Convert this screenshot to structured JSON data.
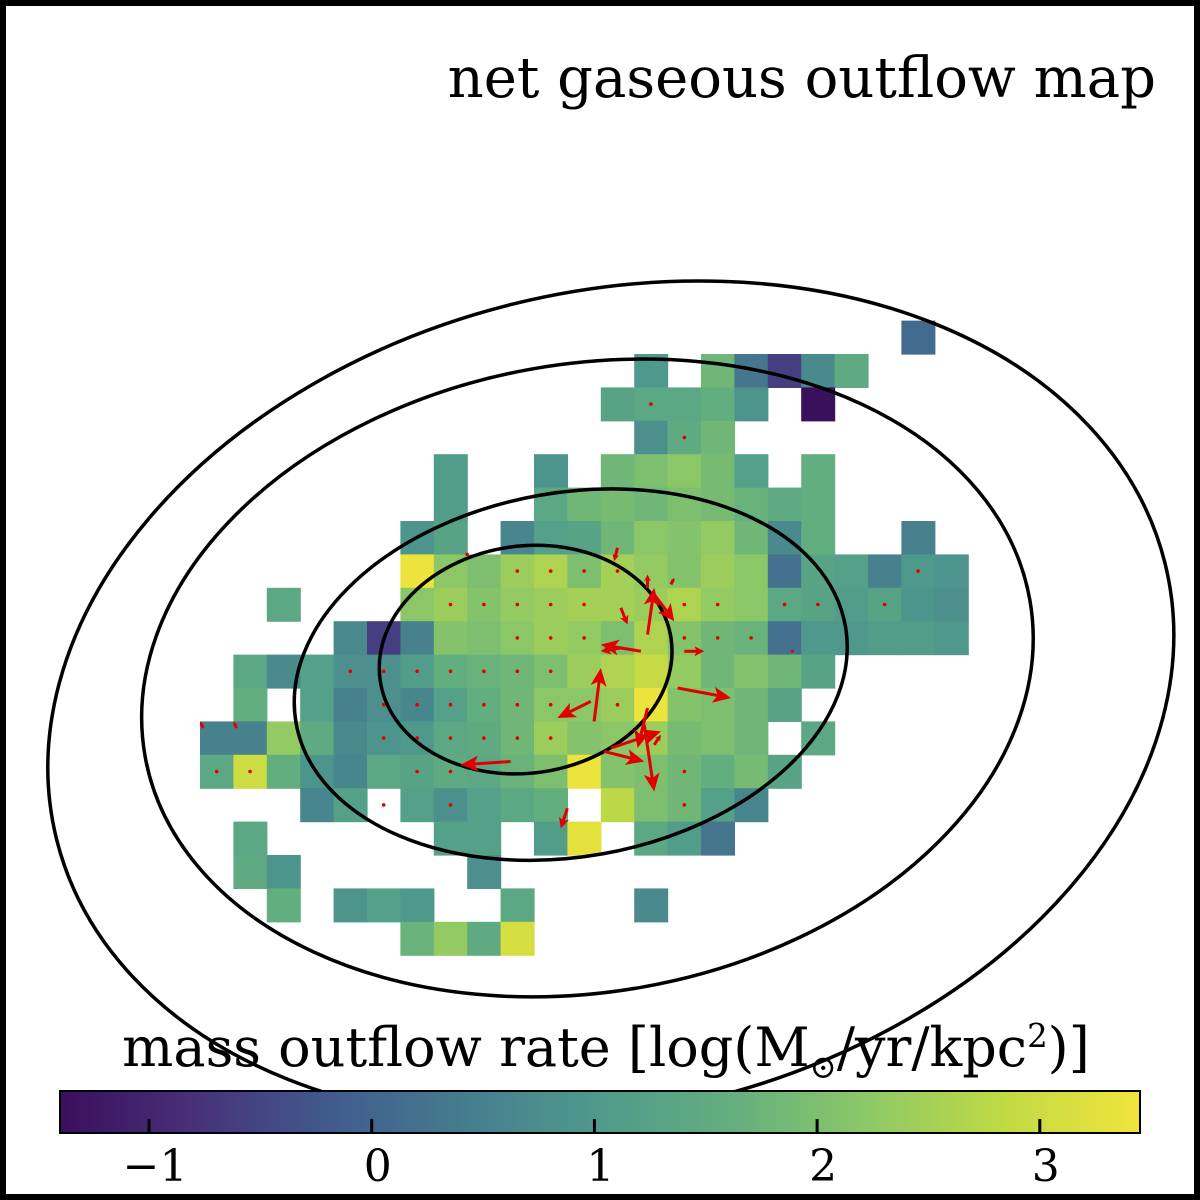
{
  "chart_data": {
    "type": "heatmap",
    "title": "net gaseous outflow map",
    "colorbar": {
      "label_text": "mass outflow rate [log(M",
      "label_sub": "⊙",
      "label_mid": "/yr/kpc",
      "label_sup": "2",
      "label_end": ")]",
      "colormap": "viridis",
      "vmin": -1.4,
      "vmax": 3.45,
      "ticks": [
        -1,
        0,
        1,
        2,
        3
      ],
      "tick_labels": [
        "−1",
        "0",
        "1",
        "2",
        "3"
      ],
      "orientation": "horizontal",
      "placement": "bottom"
    },
    "grid": {
      "origin": [
        0,
        0
      ],
      "spacing": 1
    },
    "cells": [
      [
        21,
        9,
        0.1
      ],
      [
        13,
        10,
        1.0
      ],
      [
        15,
        10,
        1.8
      ],
      [
        16,
        10,
        0.3
      ],
      [
        17,
        10,
        -0.6
      ],
      [
        18,
        10,
        0.7
      ],
      [
        19,
        10,
        1.5
      ],
      [
        12,
        11,
        1.3
      ],
      [
        13,
        11,
        1.4
      ],
      [
        14,
        11,
        1.4
      ],
      [
        15,
        11,
        1.6
      ],
      [
        16,
        11,
        0.9
      ],
      [
        18,
        11,
        -1.4
      ],
      [
        13,
        12,
        0.8
      ],
      [
        14,
        12,
        1.5
      ],
      [
        15,
        12,
        1.8
      ],
      [
        7,
        13,
        1.1
      ],
      [
        10,
        13,
        0.9
      ],
      [
        12,
        13,
        1.8
      ],
      [
        13,
        13,
        2.0
      ],
      [
        14,
        13,
        2.2
      ],
      [
        15,
        13,
        1.9
      ],
      [
        16,
        13,
        1.2
      ],
      [
        18,
        13,
        1.6
      ],
      [
        7,
        14,
        1.1
      ],
      [
        10,
        14,
        1.4
      ],
      [
        11,
        14,
        1.8
      ],
      [
        12,
        14,
        1.9
      ],
      [
        13,
        14,
        1.8
      ],
      [
        14,
        14,
        2.0
      ],
      [
        15,
        14,
        1.9
      ],
      [
        16,
        14,
        1.7
      ],
      [
        17,
        14,
        1.5
      ],
      [
        18,
        14,
        1.6
      ],
      [
        6,
        15,
        0.9
      ],
      [
        7,
        15,
        1.3
      ],
      [
        9,
        15,
        0.6
      ],
      [
        10,
        15,
        1.2
      ],
      [
        11,
        15,
        1.3
      ],
      [
        12,
        15,
        1.8
      ],
      [
        13,
        15,
        2.2
      ],
      [
        14,
        15,
        2.1
      ],
      [
        15,
        15,
        2.3
      ],
      [
        16,
        15,
        1.8
      ],
      [
        17,
        15,
        0.7
      ],
      [
        18,
        15,
        1.6
      ],
      [
        21,
        15,
        0.5
      ],
      [
        6,
        16,
        3.4
      ],
      [
        7,
        16,
        2.2
      ],
      [
        8,
        16,
        2.0
      ],
      [
        9,
        16,
        2.4
      ],
      [
        10,
        16,
        2.6
      ],
      [
        11,
        16,
        2.0
      ],
      [
        12,
        16,
        2.5
      ],
      [
        13,
        16,
        2.3
      ],
      [
        14,
        16,
        2.1
      ],
      [
        15,
        16,
        2.4
      ],
      [
        16,
        16,
        2.2
      ],
      [
        17,
        16,
        0.2
      ],
      [
        18,
        16,
        1.3
      ],
      [
        19,
        16,
        1.2
      ],
      [
        20,
        16,
        0.5
      ],
      [
        21,
        16,
        1.0
      ],
      [
        22,
        16,
        0.9
      ],
      [
        2,
        17,
        1.4
      ],
      [
        6,
        17,
        2.2
      ],
      [
        7,
        17,
        2.4
      ],
      [
        8,
        17,
        2.1
      ],
      [
        9,
        17,
        2.3
      ],
      [
        10,
        17,
        2.4
      ],
      [
        11,
        17,
        2.5
      ],
      [
        12,
        17,
        2.5
      ],
      [
        13,
        17,
        2.4
      ],
      [
        14,
        17,
        2.6
      ],
      [
        15,
        17,
        2.3
      ],
      [
        16,
        17,
        2.2
      ],
      [
        17,
        17,
        1.4
      ],
      [
        18,
        17,
        1.3
      ],
      [
        19,
        17,
        1.1
      ],
      [
        20,
        17,
        1.3
      ],
      [
        21,
        17,
        0.9
      ],
      [
        22,
        17,
        0.8
      ],
      [
        4,
        18,
        0.7
      ],
      [
        5,
        18,
        -0.6
      ],
      [
        6,
        18,
        0.5
      ],
      [
        7,
        18,
        2.1
      ],
      [
        8,
        18,
        2.0
      ],
      [
        9,
        18,
        2.2
      ],
      [
        10,
        18,
        2.4
      ],
      [
        11,
        18,
        2.3
      ],
      [
        12,
        18,
        2.0
      ],
      [
        13,
        18,
        2.6
      ],
      [
        14,
        18,
        2.1
      ],
      [
        15,
        18,
        1.8
      ],
      [
        16,
        18,
        1.7
      ],
      [
        17,
        18,
        0.2
      ],
      [
        18,
        18,
        1.0
      ],
      [
        19,
        18,
        1.0
      ],
      [
        20,
        18,
        1.1
      ],
      [
        21,
        18,
        1.1
      ],
      [
        22,
        18,
        1.0
      ],
      [
        1,
        19,
        1.4
      ],
      [
        2,
        19,
        0.7
      ],
      [
        3,
        19,
        1.2
      ],
      [
        4,
        19,
        0.8
      ],
      [
        5,
        19,
        0.8
      ],
      [
        6,
        19,
        1.1
      ],
      [
        7,
        19,
        1.6
      ],
      [
        8,
        19,
        1.7
      ],
      [
        9,
        19,
        1.8
      ],
      [
        10,
        19,
        2.0
      ],
      [
        11,
        19,
        2.4
      ],
      [
        12,
        19,
        2.6
      ],
      [
        13,
        19,
        2.9
      ],
      [
        14,
        19,
        2.3
      ],
      [
        15,
        19,
        1.8
      ],
      [
        16,
        19,
        2.1
      ],
      [
        17,
        19,
        1.8
      ],
      [
        18,
        19,
        1.3
      ],
      [
        1,
        20,
        1.6
      ],
      [
        3,
        20,
        1.2
      ],
      [
        4,
        20,
        0.5
      ],
      [
        5,
        20,
        0.8
      ],
      [
        6,
        20,
        0.6
      ],
      [
        7,
        20,
        1.2
      ],
      [
        8,
        20,
        1.6
      ],
      [
        9,
        20,
        1.8
      ],
      [
        10,
        20,
        2.2
      ],
      [
        11,
        20,
        2.2
      ],
      [
        12,
        20,
        2.4
      ],
      [
        13,
        20,
        3.4
      ],
      [
        14,
        20,
        2.1
      ],
      [
        15,
        20,
        2.0
      ],
      [
        16,
        20,
        1.8
      ],
      [
        17,
        20,
        1.3
      ],
      [
        0,
        21,
        0.5
      ],
      [
        1,
        21,
        0.5
      ],
      [
        2,
        21,
        2.3
      ],
      [
        3,
        21,
        1.5
      ],
      [
        4,
        21,
        0.7
      ],
      [
        5,
        21,
        0.9
      ],
      [
        6,
        21,
        1.0
      ],
      [
        7,
        21,
        1.4
      ],
      [
        8,
        21,
        1.5
      ],
      [
        9,
        21,
        1.8
      ],
      [
        10,
        21,
        2.4
      ],
      [
        11,
        21,
        2.1
      ],
      [
        12,
        21,
        2.2
      ],
      [
        13,
        21,
        2.4
      ],
      [
        14,
        21,
        1.9
      ],
      [
        15,
        21,
        2.0
      ],
      [
        16,
        21,
        1.8
      ],
      [
        18,
        21,
        1.4
      ],
      [
        0,
        22,
        1.4
      ],
      [
        1,
        22,
        3.0
      ],
      [
        2,
        22,
        1.6
      ],
      [
        3,
        22,
        0.9
      ],
      [
        4,
        22,
        0.6
      ],
      [
        5,
        22,
        1.4
      ],
      [
        6,
        22,
        1.3
      ],
      [
        7,
        22,
        1.5
      ],
      [
        8,
        22,
        1.4
      ],
      [
        9,
        22,
        1.7
      ],
      [
        10,
        22,
        2.0
      ],
      [
        11,
        22,
        3.4
      ],
      [
        12,
        22,
        2.1
      ],
      [
        13,
        22,
        2.0
      ],
      [
        14,
        22,
        1.8
      ],
      [
        15,
        22,
        1.6
      ],
      [
        16,
        22,
        1.9
      ],
      [
        17,
        22,
        1.3
      ],
      [
        3,
        23,
        0.6
      ],
      [
        4,
        23,
        1.2
      ],
      [
        6,
        23,
        1.2
      ],
      [
        7,
        23,
        0.8
      ],
      [
        8,
        23,
        1.2
      ],
      [
        9,
        23,
        1.4
      ],
      [
        10,
        23,
        1.6
      ],
      [
        12,
        23,
        2.8
      ],
      [
        13,
        23,
        2.0
      ],
      [
        14,
        23,
        1.8
      ],
      [
        15,
        23,
        1.2
      ],
      [
        16,
        23,
        0.6
      ],
      [
        1,
        24,
        1.4
      ],
      [
        7,
        24,
        1.2
      ],
      [
        8,
        24,
        1.2
      ],
      [
        10,
        24,
        1.1
      ],
      [
        11,
        24,
        3.3
      ],
      [
        13,
        24,
        1.4
      ],
      [
        14,
        24,
        1.1
      ],
      [
        15,
        24,
        0.3
      ],
      [
        1,
        25,
        1.5
      ],
      [
        2,
        25,
        0.9
      ],
      [
        8,
        25,
        0.8
      ],
      [
        2,
        26,
        1.6
      ],
      [
        4,
        26,
        0.9
      ],
      [
        5,
        26,
        1.2
      ],
      [
        6,
        26,
        1.0
      ],
      [
        9,
        26,
        1.4
      ],
      [
        13,
        26,
        0.7
      ],
      [
        6,
        27,
        1.7
      ],
      [
        7,
        27,
        2.3
      ],
      [
        8,
        27,
        1.5
      ],
      [
        9,
        27,
        3.1
      ]
    ],
    "arrows": [
      [
        13.2,
        18.9,
        -1.2,
        -0.2
      ],
      [
        13.4,
        18.4,
        0.2,
        -1.4
      ],
      [
        12.6,
        18.8,
        -0.6,
        0.1
      ],
      [
        11.8,
        21.0,
        0.2,
        -1.6
      ],
      [
        11.7,
        20.4,
        -1.0,
        0.5
      ],
      [
        13.4,
        20.6,
        -0.3,
        1.2
      ],
      [
        14.5,
        18.9,
        0.6,
        0.0
      ],
      [
        14.3,
        20.0,
        1.6,
        0.3
      ],
      [
        12.3,
        21.8,
        1.5,
        -0.5
      ],
      [
        12.1,
        21.9,
        1.2,
        0.3
      ],
      [
        13.3,
        21.1,
        0.3,
        2.0
      ],
      [
        13.4,
        17.0,
        0.0,
        -0.4
      ],
      [
        12.6,
        17.6,
        0.2,
        0.5
      ],
      [
        13.6,
        17.2,
        0.6,
        0.8
      ],
      [
        9.3,
        22.2,
        -1.5,
        0.1
      ],
      [
        11.0,
        23.6,
        -0.2,
        0.6
      ],
      [
        13.6,
        21.7,
        0.2,
        -0.3
      ],
      [
        14.1,
        16.9,
        0.1,
        -0.2
      ],
      [
        0.1,
        21.2,
        -0.1,
        -0.2
      ],
      [
        1.1,
        21.2,
        -0.1,
        -0.2
      ],
      [
        12.5,
        15.8,
        -0.1,
        0.4
      ],
      [
        17.7,
        18.9,
        0.1,
        0.0
      ]
    ],
    "dots": [
      [
        13.5,
        11.5
      ],
      [
        14.5,
        12.5
      ],
      [
        8.0,
        16.0
      ],
      [
        9.5,
        16.5
      ],
      [
        10.5,
        16.5
      ],
      [
        11.5,
        16.5
      ],
      [
        12.5,
        16.5
      ],
      [
        7.5,
        17.5
      ],
      [
        8.5,
        17.5
      ],
      [
        9.5,
        17.5
      ],
      [
        10.5,
        17.5
      ],
      [
        11.5,
        17.5
      ],
      [
        14.5,
        17.5
      ],
      [
        15.5,
        17.5
      ],
      [
        17.5,
        17.5
      ],
      [
        18.5,
        17.5
      ],
      [
        20.5,
        17.5
      ],
      [
        9.5,
        18.5
      ],
      [
        10.5,
        18.5
      ],
      [
        11.5,
        18.5
      ],
      [
        14.5,
        18.5
      ],
      [
        15.5,
        18.5
      ],
      [
        16.5,
        18.5
      ],
      [
        4.5,
        19.5
      ],
      [
        5.5,
        19.5
      ],
      [
        6.5,
        19.5
      ],
      [
        7.5,
        19.5
      ],
      [
        8.5,
        19.5
      ],
      [
        9.5,
        19.5
      ],
      [
        10.5,
        19.5
      ],
      [
        5.5,
        20.5
      ],
      [
        6.5,
        20.5
      ],
      [
        7.5,
        20.5
      ],
      [
        8.5,
        20.5
      ],
      [
        9.5,
        20.5
      ],
      [
        10.5,
        20.5
      ],
      [
        12.5,
        20.5
      ],
      [
        5.5,
        21.5
      ],
      [
        6.5,
        21.5
      ],
      [
        7.5,
        21.5
      ],
      [
        8.5,
        21.5
      ],
      [
        9.5,
        21.5
      ],
      [
        10.5,
        21.5
      ],
      [
        0.5,
        22.5
      ],
      [
        1.5,
        22.5
      ],
      [
        6.5,
        22.5
      ],
      [
        7.5,
        22.5
      ],
      [
        14.5,
        22.5
      ],
      [
        5.5,
        23.5
      ],
      [
        7.5,
        23.5
      ],
      [
        14.5,
        23.5
      ],
      [
        21.5,
        16.5
      ]
    ],
    "ellipses": [
      {
        "cx": 11.1,
        "cy": 19.6,
        "rx": 8.35,
        "ry": 5.45,
        "angle_deg": -10
      },
      {
        "cx": 11.6,
        "cy": 19.7,
        "rx": 13.45,
        "ry": 9.4,
        "angle_deg": -10
      },
      {
        "cx": 12.3,
        "cy": 20.4,
        "rx": 17.1,
        "ry": 12.25,
        "angle_deg": -14
      },
      {
        "cx": 9.75,
        "cy": 19.15,
        "rx": 4.4,
        "ry": 3.4,
        "angle_deg": -8
      }
    ]
  }
}
